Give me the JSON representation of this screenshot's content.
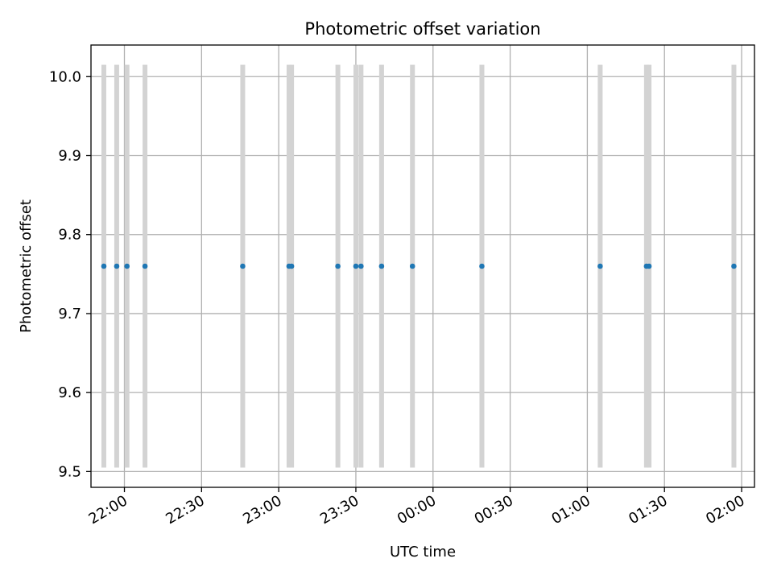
{
  "chart_data": {
    "type": "scatter",
    "title": "Photometric offset variation",
    "xlabel": "UTC time",
    "ylabel": "Photometric offset",
    "xlim": [
      "21:47",
      "02:05"
    ],
    "ylim": [
      9.48,
      10.04
    ],
    "x_ticks": [
      "22:00",
      "22:30",
      "23:00",
      "23:30",
      "00:00",
      "00:30",
      "01:00",
      "01:30",
      "02:00"
    ],
    "y_ticks": [
      "9.5",
      "9.6",
      "9.7",
      "9.8",
      "9.9",
      "10.0"
    ],
    "grid": true,
    "marker_color": "#1f77b4",
    "band_color": "#d3d3d3",
    "band_range": [
      9.505,
      10.015
    ],
    "series": [
      {
        "x": [
          "21:52",
          "21:57",
          "22:01",
          "22:08",
          "22:46",
          "23:04",
          "23:05",
          "23:23",
          "23:30",
          "23:32",
          "23:40",
          "23:52",
          "00:19",
          "01:05",
          "01:23",
          "01:24",
          "01:57"
        ],
        "y": [
          9.76,
          9.76,
          9.76,
          9.76,
          9.76,
          9.76,
          9.76,
          9.76,
          9.76,
          9.76,
          9.76,
          9.76,
          9.76,
          9.76,
          9.76,
          9.76,
          9.76
        ]
      }
    ]
  }
}
